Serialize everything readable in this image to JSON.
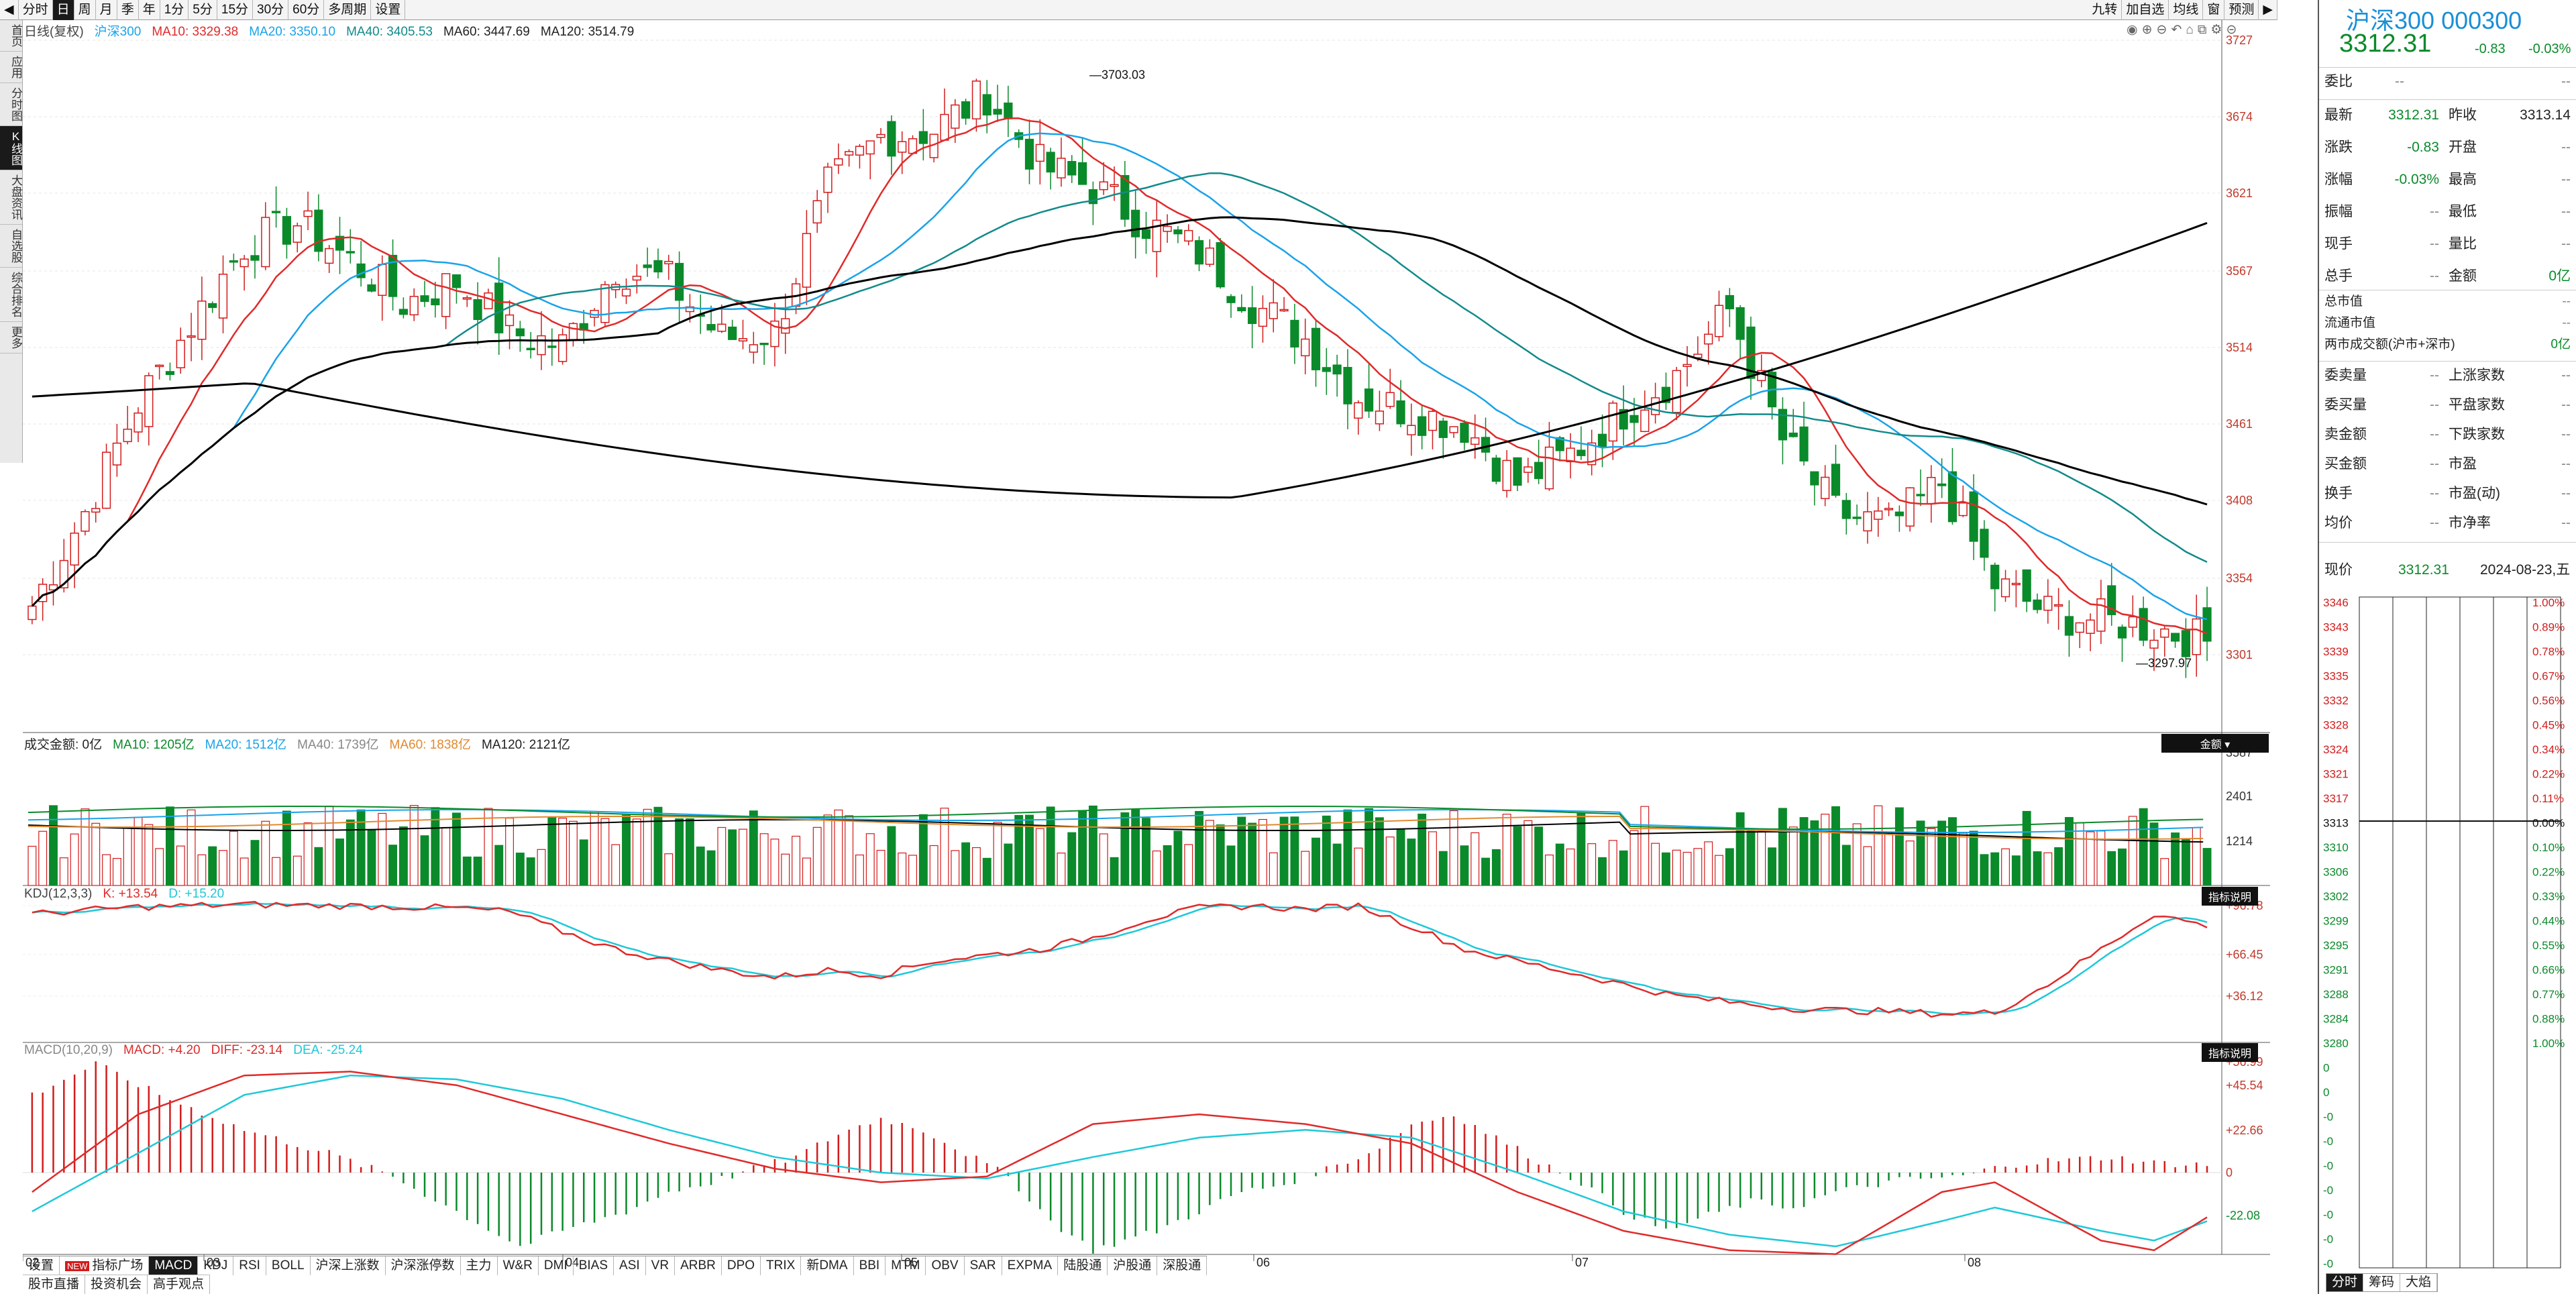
{
  "top_periods": [
    "分时",
    "日",
    "周",
    "月",
    "季",
    "年",
    "1分",
    "5分",
    "15分",
    "30分",
    "60分",
    "多周期",
    "设置"
  ],
  "top_active": "日",
  "top_right": [
    "九转",
    "加自选",
    "均线",
    "窗",
    "预测"
  ],
  "sidebar": [
    "首页",
    "应用",
    "分时图",
    "K线图",
    "大盘资讯",
    "自选股",
    "综合排名",
    "更多"
  ],
  "sidebar_active": "K线图",
  "price_legend": {
    "a": "日线(复权)",
    "b": "沪深300",
    "c": "MA10: 3329.38",
    "d": "MA20: 3350.10",
    "e": "MA40: 3405.53",
    "f": "MA60: 3447.69",
    "g": "MA120: 3514.79"
  },
  "price_axis": [
    "3727",
    "3674",
    "3621",
    "3567",
    "3514",
    "3461",
    "3408",
    "3354",
    "3301"
  ],
  "price_high": "3703.03",
  "price_low": "3297.97",
  "vol_legend": {
    "a": "成交金额: 0亿",
    "b": "MA10: 1205亿",
    "c": "MA20: 1512亿",
    "d": "MA40: 1739亿",
    "e": "MA60: 1838亿",
    "f": "MA120: 2121亿"
  },
  "vol_axis": [
    "3587",
    "2401",
    "1214"
  ],
  "vol_tag": "金额",
  "kdj_legend": {
    "a": "KDJ(12,3,3)",
    "b": "K: +13.54",
    "c": "D: +15.20"
  },
  "kdj_axis": [
    "+96.78",
    "+66.45",
    "+36.12"
  ],
  "kdj_tag": "指标说明",
  "macd_legend": {
    "a": "MACD(10,20,9)",
    "b": "MACD: +4.20",
    "c": "DIFF: -23.14",
    "d": "DEA: -25.24"
  },
  "macd_axis": [
    "+56.99",
    "+45.54",
    "+22.66",
    "0",
    "-22.08"
  ],
  "macd_tag": "指标说明",
  "months": [
    "02",
    "03",
    "04",
    "05",
    "06",
    "07",
    "08"
  ],
  "ind_tabs": [
    "设置",
    "指标广场",
    "MACD",
    "KDJ",
    "RSI",
    "BOLL",
    "沪深上涨数",
    "沪深涨停数",
    "主力",
    "W&R",
    "DMI",
    "BIAS",
    "ASI",
    "VR",
    "ARBR",
    "DPO",
    "TRIX",
    "新DMA",
    "BBI",
    "MTM",
    "OBV",
    "SAR",
    "EXPMA",
    "陆股通",
    "沪股通",
    "深股通"
  ],
  "ind_active": "MACD",
  "new_badge": "NEW",
  "bottom_links": [
    "股市直播",
    "投资机会",
    "高手观点"
  ],
  "right": {
    "title": "沪深300 000300",
    "price": "3312.31",
    "chg": "-0.83",
    "pct": "-0.03%",
    "weibi": "委比",
    "weibi_v": "--",
    "weibi_v2": "--",
    "rows": [
      [
        "最新",
        "3312.31",
        "昨收",
        "3313.14"
      ],
      [
        "涨跌",
        "-0.83",
        "开盘",
        "--"
      ],
      [
        "涨幅",
        "-0.03%",
        "最高",
        "--"
      ],
      [
        "振幅",
        "--",
        "最低",
        "--"
      ],
      [
        "现手",
        "--",
        "量比",
        "--"
      ],
      [
        "总手",
        "--",
        "金额",
        "0亿"
      ]
    ],
    "rows2": [
      [
        "总市值",
        "--"
      ],
      [
        "流通市值",
        "--"
      ],
      [
        "两市成交额(沪市+深市)",
        "0亿"
      ]
    ],
    "rows3": [
      [
        "委卖量",
        "--",
        "上涨家数",
        "--"
      ],
      [
        "委买量",
        "--",
        "平盘家数",
        "--"
      ],
      [
        "卖金额",
        "--",
        "下跌家数",
        "--"
      ],
      [
        "买金额",
        "--",
        "市盈",
        "--"
      ],
      [
        "换手",
        "--",
        "市盈(动)",
        "--"
      ],
      [
        "均价",
        "--",
        "市净率",
        "--"
      ]
    ],
    "now_label": "现价",
    "now_price": "3312.31",
    "date": "2024-08-23,五",
    "mini_left": [
      "3346",
      "3343",
      "3339",
      "3335",
      "3332",
      "3328",
      "3324",
      "3321",
      "3317",
      "3313",
      "3310",
      "3306",
      "3302",
      "3299",
      "3295",
      "3291",
      "3288",
      "3284",
      "3280",
      "0",
      "0",
      "-0",
      "-0",
      "-0",
      "-0",
      "-0",
      "-0",
      "-0"
    ],
    "mini_right": [
      "1.00%",
      "0.89%",
      "0.78%",
      "0.67%",
      "0.56%",
      "0.45%",
      "0.34%",
      "0.22%",
      "0.11%",
      "0.00%",
      "0.10%",
      "0.22%",
      "0.33%",
      "0.44%",
      "0.55%",
      "0.66%",
      "0.77%",
      "0.88%",
      "1.00%"
    ],
    "bottom_tabs": [
      "分时",
      "筹码",
      "大焰"
    ]
  },
  "colors": {
    "up": "#d21c1c",
    "down": "#0a8a2a",
    "ma10": "#e02a2a",
    "ma20": "#1aa3e8",
    "ma40": "#138a8a",
    "ma60": "#e08a30",
    "ma120": "#000000",
    "k": "#e02a2a",
    "d": "#1ec8d8"
  }
}
